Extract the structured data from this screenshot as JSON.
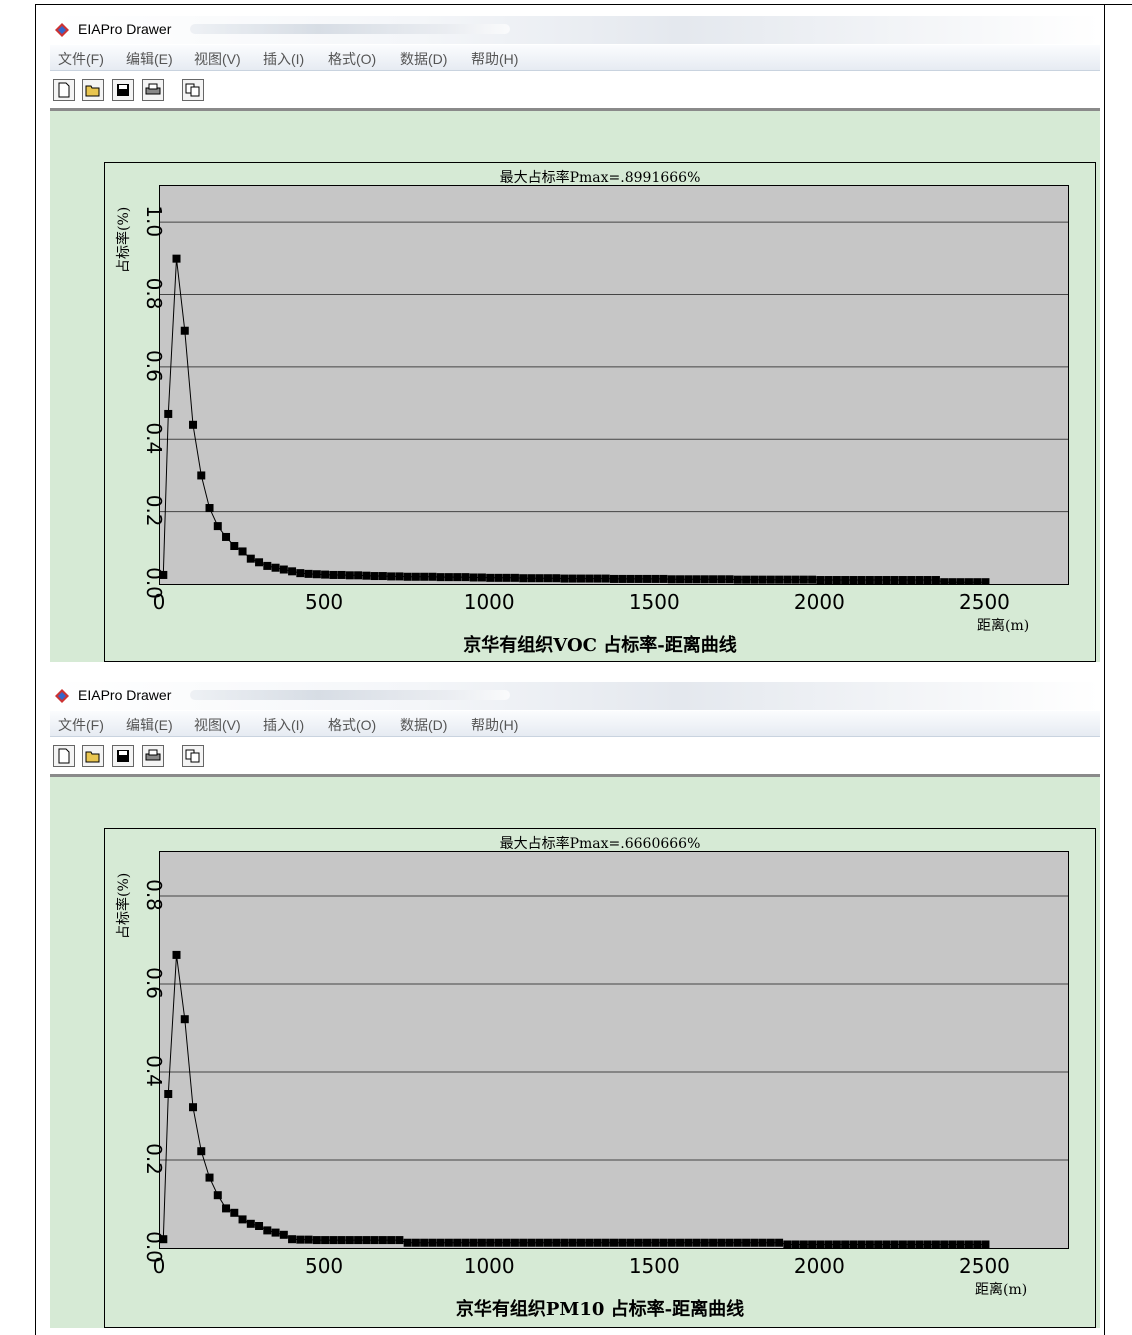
{
  "windows": [
    {
      "title": "EIAPro Drawer",
      "menu": [
        "文件(F)",
        "编辑(E)",
        "视图(V)",
        "插入(I)",
        "格式(O)",
        "数据(D)",
        "帮助(H)"
      ],
      "toolbar": [
        "new-file-icon",
        "open-folder-icon",
        "save-icon",
        "print-icon",
        "copy-icon"
      ],
      "chart_data": {
        "type": "line",
        "title": "最大占标率Pmax=.8991666%",
        "xlabel": "京华有组织VOC 占标率-距离曲线",
        "xunit": "距离(m)",
        "ylabel": "占标率(%)",
        "xlim": [
          0,
          2750
        ],
        "ylim": [
          0,
          1.1
        ],
        "xticks": [
          0,
          500,
          1000,
          1500,
          2000,
          2500
        ],
        "yticks": [
          0.0,
          0.2,
          0.4,
          0.6,
          0.8,
          1.0
        ],
        "grid": true,
        "x": [
          10,
          25,
          50,
          75,
          100,
          125,
          150,
          175,
          200,
          225,
          250,
          275,
          300,
          325,
          350,
          375,
          400,
          425,
          450,
          475,
          500,
          525,
          550,
          575,
          600,
          625,
          650,
          675,
          700,
          725,
          750,
          775,
          800,
          825,
          850,
          875,
          900,
          925,
          950,
          975,
          1000,
          1025,
          1050,
          1075,
          1100,
          1125,
          1150,
          1175,
          1200,
          1225,
          1250,
          1275,
          1300,
          1325,
          1350,
          1375,
          1400,
          1425,
          1450,
          1475,
          1500,
          1525,
          1550,
          1575,
          1600,
          1625,
          1650,
          1675,
          1700,
          1725,
          1750,
          1775,
          1800,
          1825,
          1850,
          1875,
          1900,
          1925,
          1950,
          1975,
          2000,
          2025,
          2050,
          2075,
          2100,
          2125,
          2150,
          2175,
          2200,
          2225,
          2250,
          2275,
          2300,
          2325,
          2350,
          2375,
          2400,
          2425,
          2450,
          2475,
          2500
        ],
        "y": [
          0.025,
          0.47,
          0.8992,
          0.7,
          0.44,
          0.3,
          0.21,
          0.16,
          0.13,
          0.105,
          0.09,
          0.07,
          0.06,
          0.05,
          0.045,
          0.04,
          0.035,
          0.03,
          0.028,
          0.027,
          0.026,
          0.025,
          0.025,
          0.024,
          0.024,
          0.023,
          0.022,
          0.022,
          0.021,
          0.021,
          0.02,
          0.02,
          0.02,
          0.02,
          0.019,
          0.019,
          0.019,
          0.019,
          0.018,
          0.018,
          0.017,
          0.017,
          0.017,
          0.017,
          0.016,
          0.016,
          0.016,
          0.016,
          0.016,
          0.015,
          0.015,
          0.015,
          0.015,
          0.015,
          0.015,
          0.014,
          0.014,
          0.014,
          0.014,
          0.014,
          0.014,
          0.014,
          0.013,
          0.013,
          0.013,
          0.013,
          0.013,
          0.013,
          0.013,
          0.013,
          0.012,
          0.012,
          0.012,
          0.012,
          0.012,
          0.012,
          0.012,
          0.012,
          0.012,
          0.012,
          0.011,
          0.011,
          0.011,
          0.011,
          0.011,
          0.011,
          0.011,
          0.011,
          0.011,
          0.011,
          0.011,
          0.011,
          0.011,
          0.011,
          0.011,
          0.005,
          0.005,
          0.005,
          0.005,
          0.005,
          0.005
        ]
      }
    },
    {
      "title": "EIAPro Drawer",
      "menu": [
        "文件(F)",
        "编辑(E)",
        "视图(V)",
        "插入(I)",
        "格式(O)",
        "数据(D)",
        "帮助(H)"
      ],
      "toolbar": [
        "new-file-icon",
        "open-folder-icon",
        "save-icon",
        "print-icon",
        "copy-icon"
      ],
      "chart_data": {
        "type": "line",
        "title": "最大占标率Pmax=.6660666%",
        "xlabel": "京华有组织PM10 占标率-距离曲线",
        "xunit": "距离(m)",
        "ylabel": "占标率(%)",
        "xlim": [
          0,
          2750
        ],
        "ylim": [
          0,
          0.9
        ],
        "xticks": [
          0,
          500,
          1000,
          1500,
          2000,
          2500
        ],
        "yticks": [
          0.0,
          0.2,
          0.4,
          0.6,
          0.8
        ],
        "grid": true,
        "x": [
          10,
          25,
          50,
          75,
          100,
          125,
          150,
          175,
          200,
          225,
          250,
          275,
          300,
          325,
          350,
          375,
          400,
          425,
          450,
          475,
          500,
          525,
          550,
          575,
          600,
          625,
          650,
          675,
          700,
          725,
          750,
          775,
          800,
          825,
          850,
          875,
          900,
          925,
          950,
          975,
          1000,
          1025,
          1050,
          1075,
          1100,
          1125,
          1150,
          1175,
          1200,
          1225,
          1250,
          1275,
          1300,
          1325,
          1350,
          1375,
          1400,
          1425,
          1450,
          1475,
          1500,
          1525,
          1550,
          1575,
          1600,
          1625,
          1650,
          1675,
          1700,
          1725,
          1750,
          1775,
          1800,
          1825,
          1850,
          1875,
          1900,
          1925,
          1950,
          1975,
          2000,
          2025,
          2050,
          2075,
          2100,
          2125,
          2150,
          2175,
          2200,
          2225,
          2250,
          2275,
          2300,
          2325,
          2350,
          2375,
          2400,
          2425,
          2450,
          2475,
          2500
        ],
        "y": [
          0.02,
          0.35,
          0.6661,
          0.52,
          0.32,
          0.22,
          0.16,
          0.12,
          0.09,
          0.08,
          0.065,
          0.055,
          0.05,
          0.04,
          0.035,
          0.03,
          0.02,
          0.019,
          0.019,
          0.018,
          0.018,
          0.018,
          0.018,
          0.018,
          0.018,
          0.018,
          0.018,
          0.018,
          0.018,
          0.018,
          0.012,
          0.012,
          0.012,
          0.012,
          0.012,
          0.012,
          0.012,
          0.012,
          0.012,
          0.012,
          0.012,
          0.012,
          0.012,
          0.012,
          0.012,
          0.012,
          0.012,
          0.012,
          0.012,
          0.012,
          0.012,
          0.012,
          0.012,
          0.012,
          0.012,
          0.012,
          0.012,
          0.012,
          0.012,
          0.012,
          0.012,
          0.012,
          0.012,
          0.012,
          0.012,
          0.012,
          0.012,
          0.012,
          0.012,
          0.012,
          0.012,
          0.012,
          0.012,
          0.012,
          0.012,
          0.012,
          0.008,
          0.008,
          0.008,
          0.008,
          0.008,
          0.008,
          0.008,
          0.008,
          0.008,
          0.008,
          0.008,
          0.008,
          0.008,
          0.008,
          0.008,
          0.008,
          0.008,
          0.008,
          0.008,
          0.008,
          0.008,
          0.008,
          0.008,
          0.008,
          0.008
        ]
      }
    }
  ]
}
